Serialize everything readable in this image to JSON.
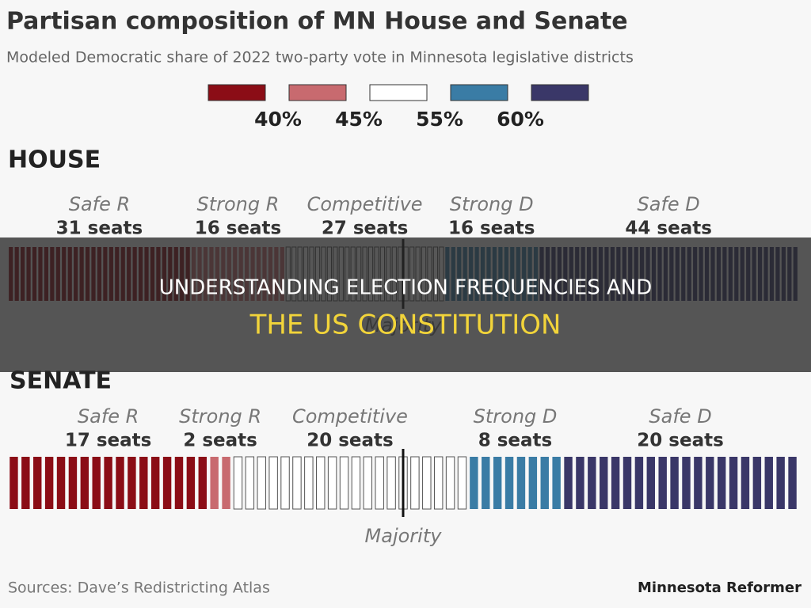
{
  "title": "Partisan composition of MN House and Senate",
  "subtitle": "Modeled Democratic share of 2022 two-party vote in Minnesota legislative districts",
  "legend": {
    "colors": [
      "#8b0d16",
      "#c86a6f",
      "#ffffff",
      "#3a7ca5",
      "#3a3768"
    ],
    "ticks": [
      "40%",
      "45%",
      "55%",
      "60%"
    ]
  },
  "house": {
    "heading": "HOUSE",
    "majority": "Majority",
    "groups": [
      {
        "name": "Safe R",
        "seats": 31,
        "label": "31 seats"
      },
      {
        "name": "Strong R",
        "seats": 16,
        "label": "16 seats"
      },
      {
        "name": "Competitive",
        "seats": 27,
        "label": "27 seats"
      },
      {
        "name": "Strong D",
        "seats": 16,
        "label": "16 seats"
      },
      {
        "name": "Safe D",
        "seats": 44,
        "label": "44 seats"
      }
    ]
  },
  "senate": {
    "heading": "SENATE",
    "majority": "Majority",
    "groups": [
      {
        "name": "Safe R",
        "seats": 17,
        "label": "17 seats"
      },
      {
        "name": "Strong R",
        "seats": 2,
        "label": "2 seats"
      },
      {
        "name": "Competitive",
        "seats": 20,
        "label": "20 seats"
      },
      {
        "name": "Strong D",
        "seats": 8,
        "label": "8 seats"
      },
      {
        "name": "Safe D",
        "seats": 20,
        "label": "20 seats"
      }
    ]
  },
  "sources": "Sources: Dave’s Redistricting Atlas",
  "brand": "Minnesota Reformer",
  "overlay": {
    "line1": "UNDERSTANDING ELECTION FREQUENCIES AND",
    "line2": "THE US CONSTITUTION"
  }
}
